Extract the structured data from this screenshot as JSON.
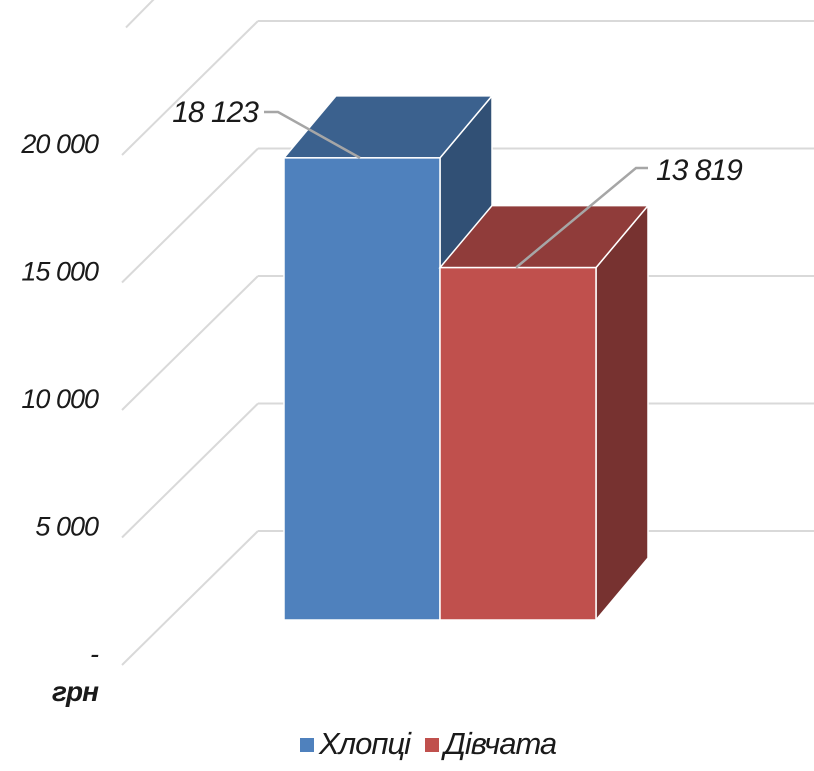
{
  "chart_data": {
    "type": "bar",
    "style": "3d-column",
    "categories": [
      "Хлопці",
      "Дівчата"
    ],
    "values": [
      18123,
      13819
    ],
    "data_labels": [
      "18 123",
      "13 819"
    ],
    "colors": [
      "#4F81BD",
      "#C0504D"
    ],
    "y_ticks": [
      {
        "value": 0,
        "label": "-"
      },
      {
        "value": 5000,
        "label": "5 000"
      },
      {
        "value": 10000,
        "label": "10 000"
      },
      {
        "value": 15000,
        "label": "15 000"
      },
      {
        "value": 20000,
        "label": "20 000"
      }
    ],
    "ylim": [
      0,
      25000
    ],
    "unit": "грн",
    "grid": true,
    "legend": {
      "position": "bottom",
      "entries": [
        "Хлопці",
        "Дівчата"
      ]
    }
  }
}
